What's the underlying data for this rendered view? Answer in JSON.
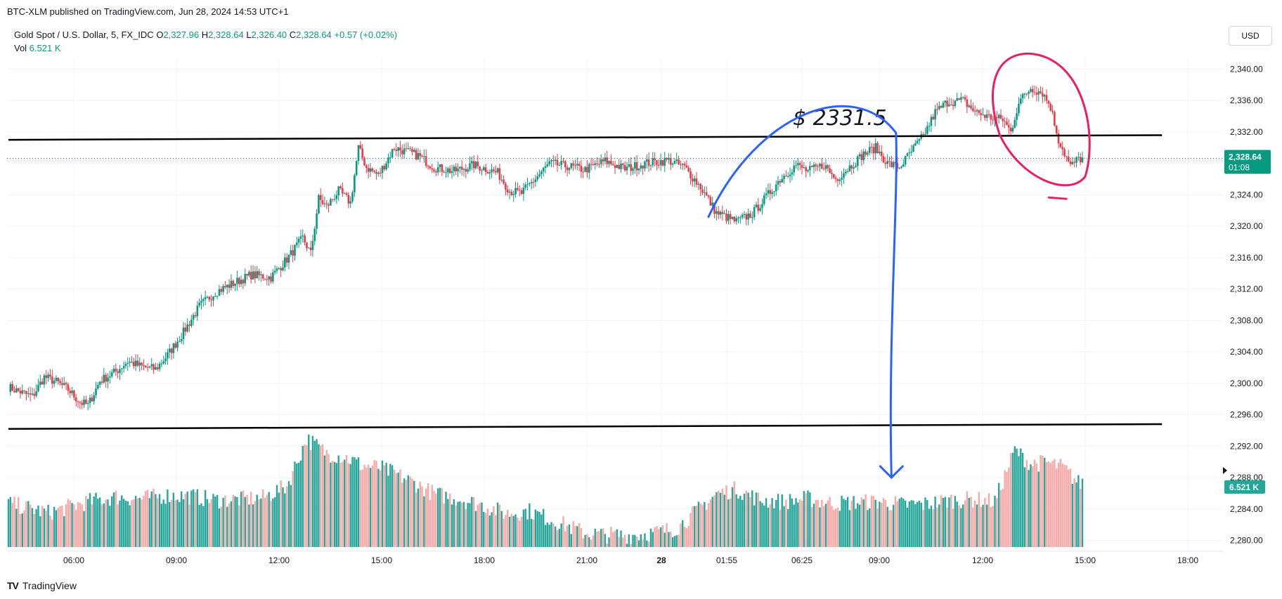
{
  "header": {
    "published_line": "BTC-XLM published on TradingView.com, Jun 28, 2024 14:53 UTC+1"
  },
  "legend": {
    "symbol": "Gold Spot / U.S. Dollar, 5, FX_IDC",
    "open_label": "O",
    "open": "2,327.96",
    "high_label": "H",
    "high": "2,328.64",
    "low_label": "L",
    "low": "2,326.40",
    "close_label": "C",
    "close": "2,328.64",
    "change": "+0.57 (+0.02%)",
    "vol_label": "Vol",
    "vol": "6.521 K"
  },
  "toolbar": {
    "currency": "USD"
  },
  "brand": {
    "name": "TradingView",
    "logo": "TV"
  },
  "colors": {
    "up": "#089981",
    "down": "#f23645",
    "vol_up": "#26a69a",
    "vol_down": "#f7a9a7",
    "blue_annotation": "#2962ff",
    "red_annotation": "#e91e63",
    "grid": "#f0f3fa"
  },
  "chart_data": {
    "type": "candlestick",
    "title": "Gold Spot / U.S. Dollar, 5, FX_IDC",
    "interval": "5",
    "ylim": [
      2278,
      2342
    ],
    "y_ticks": [
      "2,340.00",
      "2,336.00",
      "2,332.00",
      "2,328.00",
      "2,324.00",
      "2,320.00",
      "2,316.00",
      "2,312.00",
      "2,308.00",
      "2,304.00",
      "2,300.00",
      "2,296.00",
      "2,292.00",
      "2,288.00",
      "2,284.00",
      "2,280.00"
    ],
    "x_ticks": [
      "06:00",
      "09:00",
      "12:00",
      "15:00",
      "18:00",
      "21:00",
      "28",
      "01:55",
      "06:25",
      "09:00",
      "12:00",
      "15:00",
      "18:00"
    ],
    "last_price": {
      "value": "2,328.64",
      "countdown": "01:08"
    },
    "last_volume": "6.521 K",
    "grid": true,
    "price_path": [
      [
        0,
        2299.5
      ],
      [
        12,
        2298.3
      ],
      [
        18,
        2300.8
      ],
      [
        24,
        2300.2
      ],
      [
        30,
        2299.2
      ],
      [
        36,
        2297.6
      ],
      [
        40,
        2297.2
      ],
      [
        46,
        2300.3
      ],
      [
        54,
        2301.5
      ],
      [
        60,
        2302.8
      ],
      [
        66,
        2302.2
      ],
      [
        74,
        2301.8
      ],
      [
        80,
        2303.6
      ],
      [
        88,
        2306.5
      ],
      [
        96,
        2309.8
      ],
      [
        104,
        2311.6
      ],
      [
        112,
        2312.6
      ],
      [
        122,
        2313.8
      ],
      [
        132,
        2313.5
      ],
      [
        140,
        2315.8
      ],
      [
        148,
        2318.5
      ],
      [
        152,
        2316.5
      ],
      [
        156,
        2323.5
      ],
      [
        160,
        2322.5
      ],
      [
        166,
        2324.5
      ],
      [
        172,
        2323.0
      ],
      [
        176,
        2330.0
      ],
      [
        180,
        2327.5
      ],
      [
        186,
        2326.5
      ],
      [
        194,
        2330.0
      ],
      [
        200,
        2329.5
      ],
      [
        206,
        2329.0
      ],
      [
        214,
        2327.5
      ],
      [
        224,
        2327.0
      ],
      [
        234,
        2327.8
      ],
      [
        246,
        2326.8
      ],
      [
        252,
        2324.5
      ],
      [
        258,
        2324.2
      ],
      [
        264,
        2325.8
      ],
      [
        272,
        2328.0
      ],
      [
        282,
        2327.6
      ],
      [
        290,
        2327.2
      ],
      [
        300,
        2328.3
      ],
      [
        310,
        2327.3
      ],
      [
        320,
        2328.0
      ],
      [
        332,
        2328.4
      ],
      [
        340,
        2327.5
      ],
      [
        348,
        2325.0
      ],
      [
        356,
        2321.7
      ],
      [
        366,
        2320.6
      ],
      [
        374,
        2321.6
      ],
      [
        380,
        2323.4
      ],
      [
        388,
        2326.0
      ],
      [
        396,
        2327.8
      ],
      [
        402,
        2327.0
      ],
      [
        410,
        2327.8
      ],
      [
        416,
        2326.0
      ],
      [
        424,
        2327.8
      ],
      [
        430,
        2329.2
      ],
      [
        436,
        2330.0
      ],
      [
        442,
        2328.0
      ],
      [
        448,
        2327.5
      ],
      [
        454,
        2329.5
      ],
      [
        460,
        2331.5
      ],
      [
        466,
        2334.5
      ],
      [
        472,
        2335.8
      ],
      [
        480,
        2336.0
      ],
      [
        486,
        2334.6
      ],
      [
        494,
        2333.8
      ],
      [
        500,
        2333.6
      ],
      [
        504,
        2332.0
      ],
      [
        508,
        2335.8
      ],
      [
        514,
        2337.6
      ],
      [
        520,
        2337.0
      ],
      [
        524,
        2335.2
      ],
      [
        528,
        2331.0
      ],
      [
        534,
        2327.6
      ],
      [
        538,
        2328.6
      ]
    ],
    "volume_path": [
      [
        0,
        2284.4
      ],
      [
        20,
        2283.2
      ],
      [
        40,
        2284.6
      ],
      [
        54,
        2285.2
      ],
      [
        66,
        2285.0
      ],
      [
        80,
        2285.4
      ],
      [
        92,
        2285.3
      ],
      [
        104,
        2284.8
      ],
      [
        116,
        2284.9
      ],
      [
        128,
        2285.1
      ],
      [
        140,
        2286.6
      ],
      [
        150,
        2292.6
      ],
      [
        160,
        2290.8
      ],
      [
        170,
        2290.2
      ],
      [
        178,
        2289.2
      ],
      [
        186,
        2289.0
      ],
      [
        194,
        2288.2
      ],
      [
        204,
        2287.0
      ],
      [
        214,
        2285.6
      ],
      [
        226,
        2285.0
      ],
      [
        238,
        2284.2
      ],
      [
        250,
        2283.1
      ],
      [
        262,
        2283.4
      ],
      [
        276,
        2282.0
      ],
      [
        290,
        2280.6
      ],
      [
        300,
        2280.4
      ],
      [
        312,
        2280.3
      ],
      [
        324,
        2280.6
      ],
      [
        336,
        2281.2
      ],
      [
        346,
        2283.4
      ],
      [
        356,
        2285.6
      ],
      [
        366,
        2286.2
      ],
      [
        378,
        2284.8
      ],
      [
        390,
        2284.6
      ],
      [
        402,
        2285.0
      ],
      [
        414,
        2284.4
      ],
      [
        426,
        2284.5
      ],
      [
        438,
        2284.6
      ],
      [
        450,
        2284.2
      ],
      [
        462,
        2284.3
      ],
      [
        474,
        2284.8
      ],
      [
        486,
        2284.9
      ],
      [
        496,
        2284.6
      ],
      [
        506,
        2291.2
      ],
      [
        514,
        2289.4
      ],
      [
        522,
        2289.6
      ],
      [
        530,
        2289.0
      ],
      [
        538,
        2287.0
      ]
    ],
    "series": [
      {
        "name": "Vol",
        "values_ref": "volume_path"
      }
    ]
  },
  "annotations": {
    "price_label": "$ 2331.5",
    "resistance_line": {
      "start": [
        0,
        2331.0
      ],
      "end": [
        580,
        2331.6
      ]
    },
    "support_line": {
      "start": [
        0,
        2294.2
      ],
      "end": [
        580,
        2294.8
      ]
    },
    "blue_arrow": {
      "from": [
        352,
        2321.2
      ],
      "peak": [
        418,
        2331.0
      ],
      "to": [
        444,
        2288.0
      ]
    },
    "red_circle_center": [
      516,
      2333.5
    ]
  }
}
